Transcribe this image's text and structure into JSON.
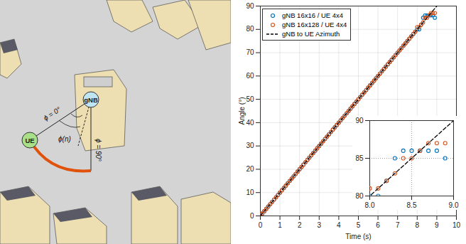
{
  "chart_data": {
    "type": "scatter",
    "xlabel": "Time (s)",
    "ylabel": "Angle (°)",
    "xlim": [
      0,
      10
    ],
    "xticks": [
      0,
      1,
      2,
      3,
      4,
      5,
      6,
      7,
      8,
      9,
      10
    ],
    "ylim": [
      0,
      90
    ],
    "yticks": [
      0,
      10,
      20,
      30,
      40,
      50,
      60,
      70,
      80,
      90
    ],
    "grid": true,
    "legend": "top-left",
    "x": [
      0,
      0.1,
      0.2,
      0.3,
      0.4,
      0.5,
      0.6,
      0.7,
      0.8,
      0.9,
      1,
      1.1,
      1.2,
      1.3,
      1.4,
      1.5,
      1.6,
      1.7,
      1.8,
      1.9,
      2,
      2.1,
      2.2,
      2.3,
      2.4,
      2.5,
      2.6,
      2.7,
      2.8,
      2.9,
      3,
      3.1,
      3.2,
      3.3,
      3.4,
      3.5,
      3.6,
      3.7,
      3.8,
      3.9,
      4,
      4.1,
      4.2,
      4.3,
      4.4,
      4.5,
      4.6,
      4.7,
      4.8,
      4.9,
      5,
      5.1,
      5.2,
      5.3,
      5.4,
      5.5,
      5.6,
      5.7,
      5.8,
      5.9,
      6,
      6.1,
      6.2,
      6.3,
      6.4,
      6.5,
      6.6,
      6.7,
      6.8,
      6.9,
      7,
      7.1,
      7.2,
      7.3,
      7.4,
      7.5,
      7.6,
      7.7,
      7.8,
      7.9,
      8,
      8.1,
      8.2,
      8.3,
      8.4,
      8.5,
      8.6,
      8.7,
      8.8,
      8.9
    ],
    "series": [
      {
        "name": "gNB 16x16 / UE 4x4",
        "color": "#0072bd",
        "marker": "circle",
        "values": [
          0,
          1,
          2,
          3,
          4,
          5,
          6,
          7,
          8,
          9,
          10,
          11,
          12,
          13,
          14,
          15,
          16,
          17,
          18,
          19,
          20,
          21,
          22,
          23,
          24,
          25,
          26,
          27,
          28,
          29,
          30,
          31,
          32,
          33,
          34,
          35,
          36,
          37,
          38,
          39,
          40,
          41,
          42,
          43,
          44,
          45,
          46,
          47,
          48,
          49,
          50,
          51,
          52,
          53,
          54,
          55,
          56,
          57,
          58,
          59,
          60,
          61,
          62,
          63,
          64,
          65,
          66,
          67,
          68,
          69,
          70,
          71,
          72,
          73,
          74,
          75,
          76,
          77,
          78,
          79,
          80,
          80,
          82,
          85,
          86,
          86,
          86,
          86,
          86,
          85
        ]
      },
      {
        "name": "gNB 16x128 / UE 4x4",
        "color": "#d95319",
        "marker": "circle",
        "values": [
          1,
          1,
          2,
          3,
          4,
          5,
          6,
          7,
          8,
          9,
          10,
          11,
          12,
          13,
          14,
          15,
          16,
          17,
          18,
          19,
          20,
          21,
          22,
          23,
          24,
          25,
          26,
          27,
          28,
          29,
          30,
          31,
          32,
          33,
          34,
          35,
          36,
          37,
          38,
          39,
          40,
          41,
          42,
          43,
          44,
          45,
          46,
          47,
          48,
          49,
          50,
          51,
          52,
          53,
          54,
          55,
          56,
          57,
          58,
          59,
          60,
          61,
          62,
          63,
          64,
          65,
          66,
          67,
          68,
          69,
          70,
          71,
          72,
          73,
          74,
          75,
          76,
          77,
          78,
          79,
          81,
          81,
          82,
          83,
          85,
          85,
          86,
          87,
          87,
          87
        ]
      },
      {
        "name": "gNB to UE Azimuth",
        "color": "#000000",
        "type": "line",
        "line_style": "dashed",
        "x": [
          0,
          9
        ],
        "values": [
          0,
          90
        ]
      }
    ],
    "inset": {
      "xlim": [
        8,
        9
      ],
      "xticks": [
        8,
        8.5,
        9
      ],
      "ylim": [
        80,
        90
      ],
      "yticks": [
        80,
        85,
        90
      ],
      "grid": true
    }
  },
  "diagram": {
    "nodes": [
      {
        "label": "UE",
        "color": "#a8e08a"
      },
      {
        "label": "gNB",
        "color": "#bfe4f2"
      }
    ],
    "angles": [
      "ϕ = 0°",
      "ϕ(n)",
      "ϕ = 90°"
    ],
    "path_color": "#e0520a"
  }
}
